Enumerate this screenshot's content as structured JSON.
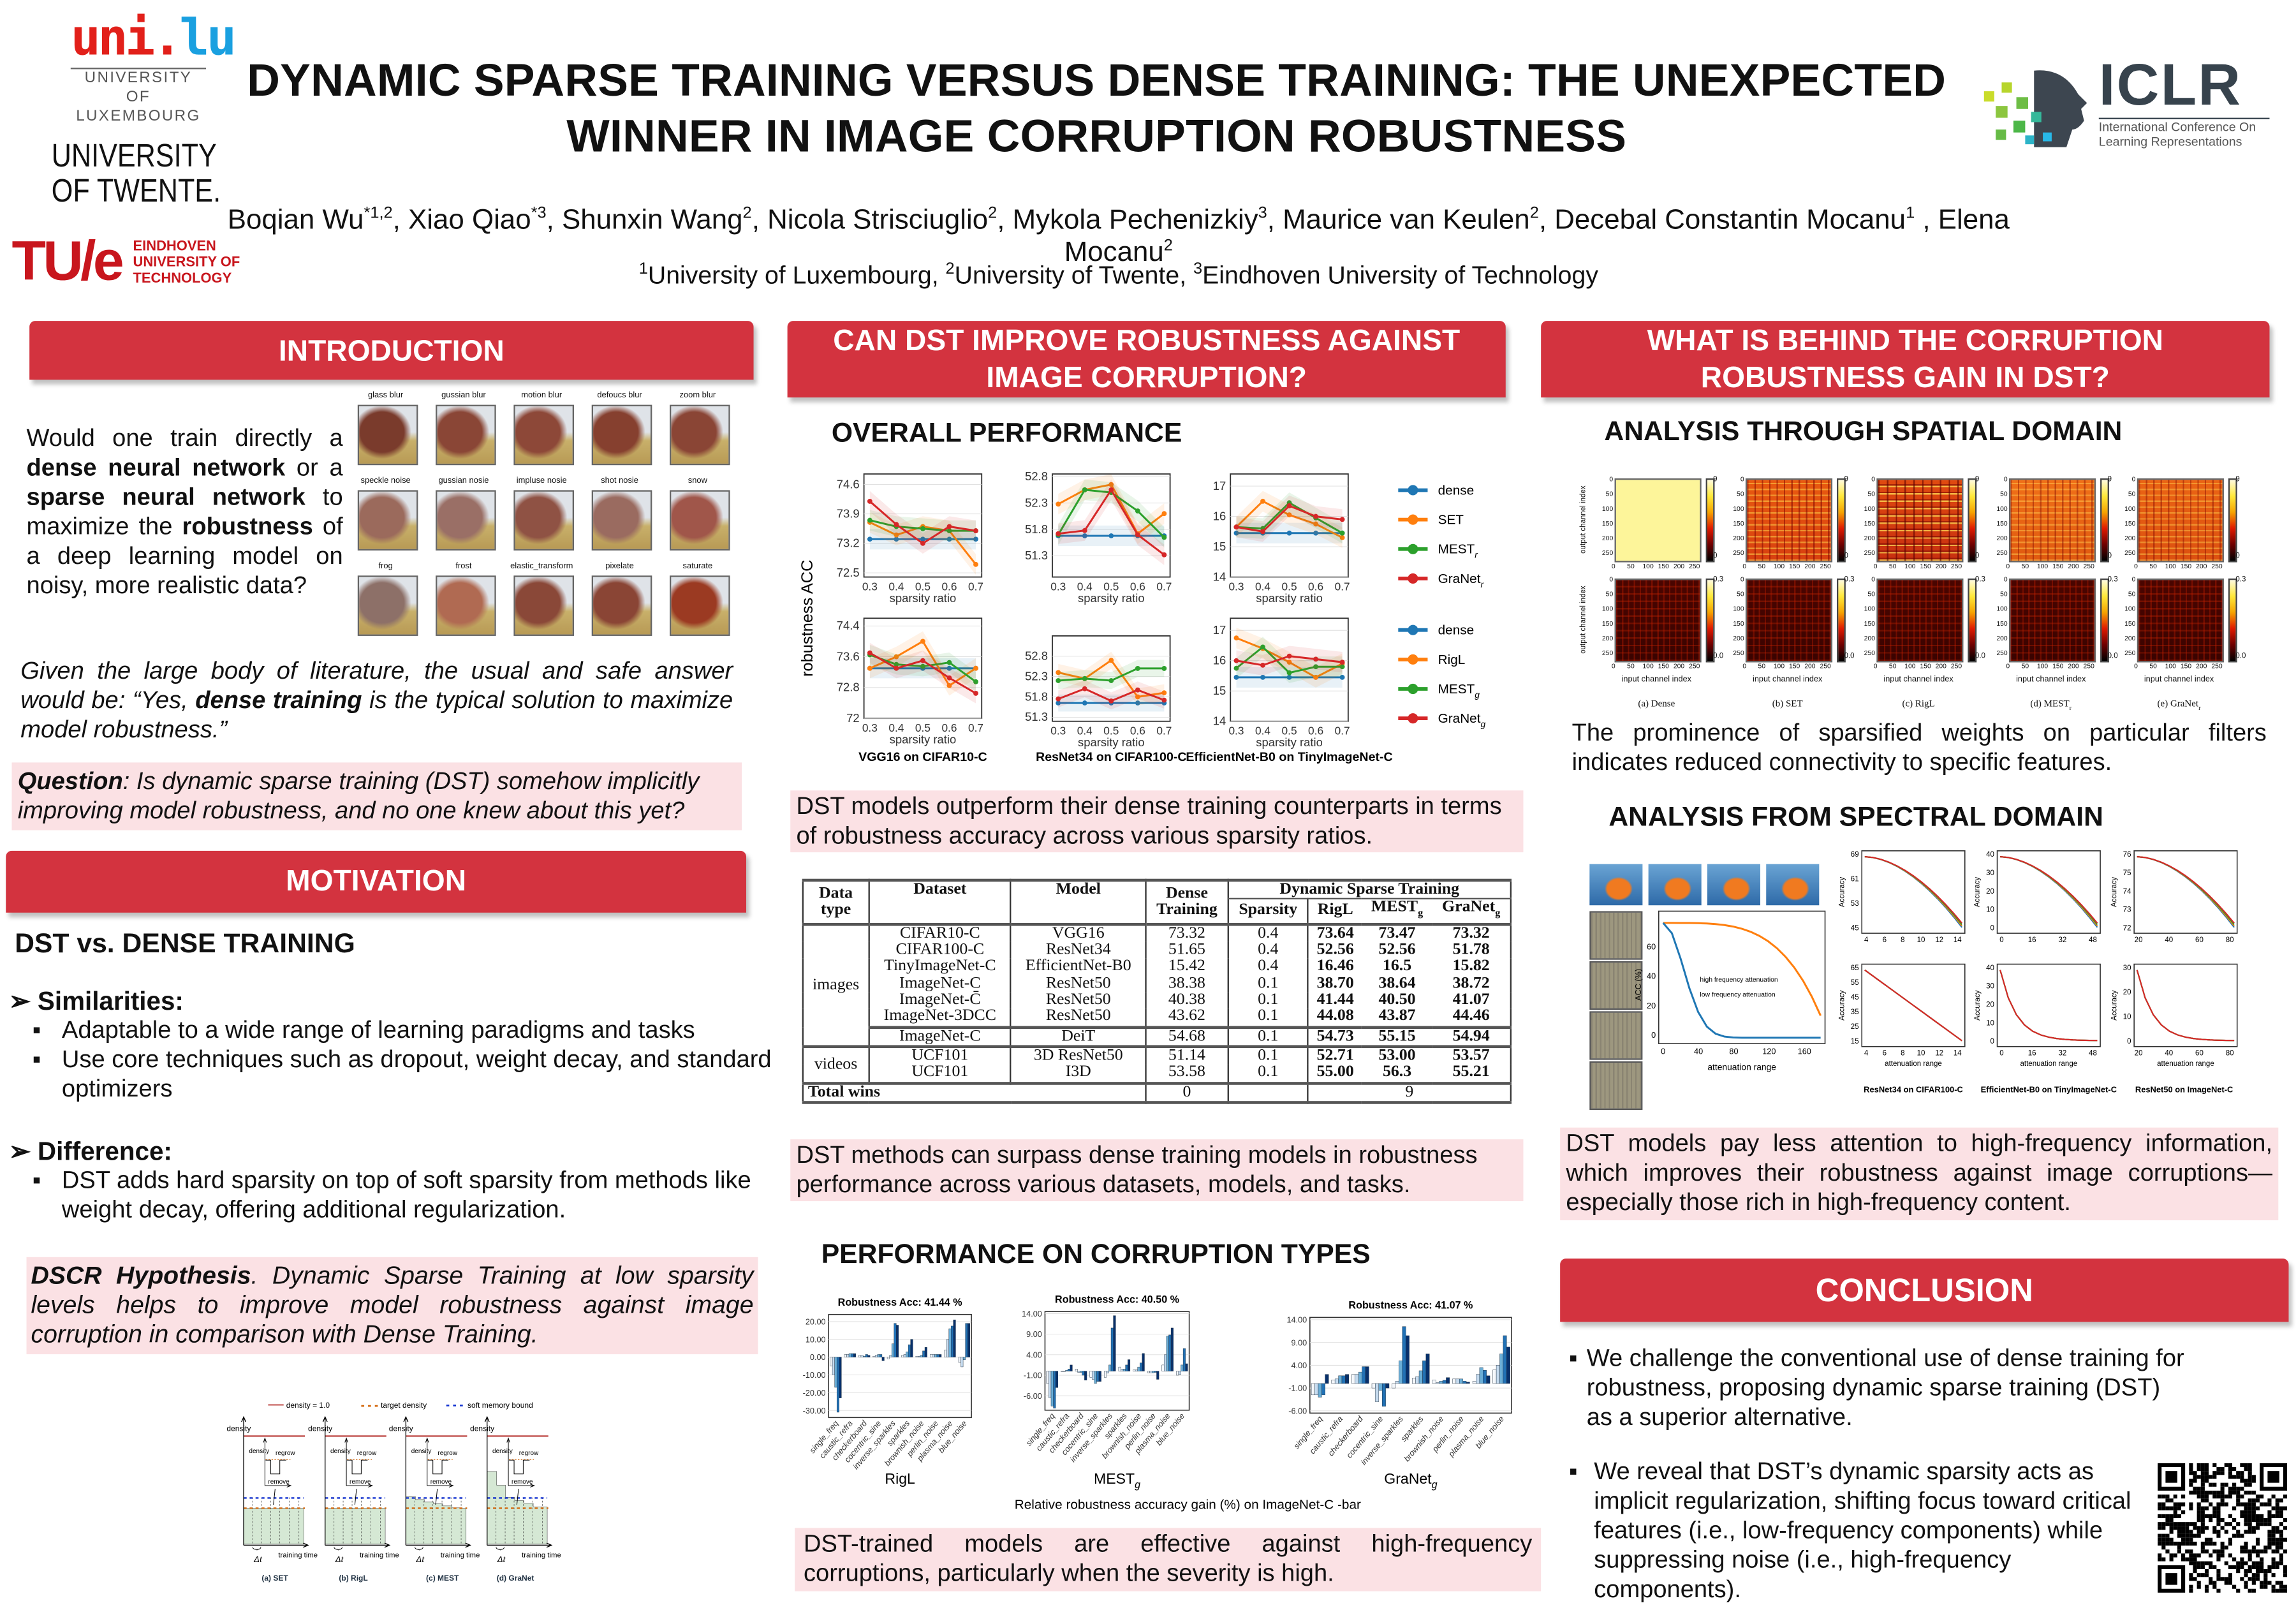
{
  "header": {
    "title_line1": "DYNAMIC SPARSE TRAINING VERSUS DENSE TRAINING: THE UNEXPECTED",
    "title_line2": "WINNER IN IMAGE CORRUPTION ROBUSTNESS",
    "authors": [
      {
        "name": "Boqian Wu",
        "sup": "*1,2"
      },
      {
        "name": "Xiao Qiao",
        "sup": "*3"
      },
      {
        "name": "Shunxin Wang",
        "sup": "2"
      },
      {
        "name": "Nicola Strisciuglio",
        "sup": "2"
      },
      {
        "name": "Mykola Pechenizkiy",
        "sup": "3"
      },
      {
        "name": "Maurice van Keulen",
        "sup": "2"
      },
      {
        "name": "Decebal Constantin Mocanu",
        "sup": "1"
      },
      {
        "name": "Elena Mocanu",
        "sup": "2"
      }
    ],
    "affiliations": [
      {
        "sup": "1",
        "name": "University of Luxembourg"
      },
      {
        "sup": "2",
        "name": "University of Twente"
      },
      {
        "sup": "3",
        "name": "Eindhoven University of Technology"
      }
    ],
    "logos": {
      "unilu_mark_a": "uni.",
      "unilu_mark_b": "lu",
      "unilu_line1": "UNIVERSITY OF",
      "unilu_line2": "LUXEMBOURG",
      "twente_line1": "UNIVERSITY",
      "twente_line2": "OF TWENTE.",
      "tue_mark": "TU/e",
      "tue_line1": "EINDHOVEN",
      "tue_line2": "UNIVERSITY OF",
      "tue_line3": "TECHNOLOGY",
      "iclr_mark": "ICLR",
      "iclr_line1": "International Conference On",
      "iclr_line2": "Learning Representations"
    }
  },
  "colors": {
    "accent": "#d3333f",
    "highlight": "#fbe1e4",
    "dense": "#1f77b4",
    "set": "#ff7f0e",
    "mest": "#2ca02c",
    "granet": "#d62728"
  },
  "intro": {
    "heading": "INTRODUCTION",
    "p1": [
      "Would one train directly a ",
      "dense neural network",
      " or a ",
      "sparse neural network",
      " to maximize the ",
      "robustness",
      " of a deep learning model on noisy, more realistic data?"
    ],
    "p2": [
      "Given the large body of literature, the usual and safe answer would be: “Yes, ",
      "dense training",
      " is the typical solution to maximize model robustness.”"
    ],
    "question": [
      "Question",
      ": Is dynamic sparse training (",
      "DST",
      ") somehow implicitly improving model robustness, and no one knew about this yet?"
    ],
    "corruptions": [
      "glass blur",
      "gussian blur",
      "motion blur",
      "defoucs blur",
      "zoom blur",
      "speckle noise",
      "gussian nosie",
      "impluse nosie",
      "shot nosie",
      "snow",
      "frog",
      "frost",
      "elastic_transform",
      "pixelate",
      "saturate"
    ]
  },
  "motivation": {
    "heading": "MOTIVATION",
    "subheading": "DST vs. DENSE TRAINING",
    "similarities_label": "Similarities:",
    "similarities": [
      "Adaptable to a wide range of learning paradigms and tasks",
      "Use core techniques such as dropout, weight decay, and standard optimizers"
    ],
    "difference_label": "Difference:",
    "differences": [
      "DST adds hard sparsity on top of soft sparsity from methods like weight decay, offering additional regularization."
    ],
    "hypothesis": [
      "DSCR Hypothesis",
      ". Dynamic Sparse Training at low sparsity levels helps to improve model robustness against image corruption in comparison with Dense Training."
    ],
    "diagram": {
      "legend": [
        "density = 1.0",
        "target density",
        "soft memory bound"
      ],
      "axis_y": "density",
      "axis_x": "training time",
      "delta": "Δt",
      "regrow": "regrow",
      "remove": "remove",
      "panels": [
        "(a) SET",
        "(b) RigL",
        "(c) MEST",
        "(d) GraNet"
      ]
    }
  },
  "middle": {
    "heading_line1": "CAN DST IMPROVE ROBUSTNESS AGAINST",
    "heading_line2": "IMAGE CORRUPTION?",
    "overall_heading": "OVERALL PERFORMANCE",
    "ylabel": "robustness ACC",
    "xlabel": "sparsity ratio",
    "captions": [
      "VGG16 on CIFAR10-C",
      "ResNet34 on CIFAR100-C",
      "EfficientNet-B0 on TinyImageNet-C"
    ],
    "legend_top": [
      "dense",
      "SET",
      "MEST",
      "GraNet"
    ],
    "legend_top_sub": [
      "",
      "",
      "r",
      "r"
    ],
    "legend_bottom": [
      "dense",
      "RigL",
      "MEST",
      "GraNet"
    ],
    "legend_bottom_sub": [
      "",
      "",
      "g",
      "g"
    ],
    "line_charts": [
      {
        "ylim": [
          72.4,
          74.85
        ],
        "yticks": [
          72.5,
          73.2,
          73.9,
          74.6
        ],
        "series": [
          [
            73.3,
            73.3,
            73.3,
            73.3,
            73.3
          ],
          [
            73.7,
            73.4,
            73.6,
            73.5,
            72.7
          ],
          [
            73.75,
            73.6,
            73.55,
            73.5,
            73.5
          ],
          [
            74.2,
            73.65,
            73.2,
            73.6,
            73.5
          ]
        ]
      },
      {
        "ylim": [
          50.9,
          52.85
        ],
        "yticks": [
          51.3,
          51.8,
          52.3,
          52.8
        ],
        "series": [
          [
            51.68,
            51.68,
            51.68,
            51.68,
            51.68
          ],
          [
            52.28,
            52.55,
            52.65,
            51.72,
            52.1
          ],
          [
            51.7,
            52.55,
            52.5,
            52.15,
            51.65
          ],
          [
            51.72,
            51.78,
            52.55,
            51.7,
            51.32
          ]
        ]
      },
      {
        "ylim": [
          14,
          17.4
        ],
        "yticks": [
          14,
          15,
          16,
          17
        ],
        "series": [
          [
            15.45,
            15.45,
            15.45,
            15.45,
            15.45
          ],
          [
            15.65,
            16.5,
            16.05,
            15.75,
            15.3
          ],
          [
            15.65,
            15.6,
            16.45,
            15.95,
            15.45
          ],
          [
            15.65,
            15.5,
            16.35,
            16.0,
            15.9
          ]
        ]
      },
      {
        "ylim": [
          72.0,
          74.6
        ],
        "yticks": [
          72.0,
          72.8,
          73.6,
          74.4
        ],
        "series": [
          [
            73.3,
            73.3,
            73.3,
            73.3,
            73.3
          ],
          [
            73.3,
            73.6,
            74.0,
            72.85,
            73.3
          ],
          [
            73.65,
            73.4,
            73.35,
            73.45,
            72.95
          ],
          [
            73.7,
            73.3,
            73.5,
            73.05,
            72.65
          ]
        ]
      },
      {
        "ylim": [
          51.2,
          53.3
        ],
        "yticks": [
          51.3,
          51.8,
          52.3,
          52.8
        ],
        "series": [
          [
            51.65,
            51.65,
            51.65,
            51.65,
            51.65
          ],
          [
            52.4,
            52.25,
            52.7,
            51.8,
            51.9
          ],
          [
            52.2,
            52.25,
            52.2,
            52.5,
            52.5
          ],
          [
            51.75,
            52.0,
            51.7,
            51.97,
            51.72
          ]
        ]
      },
      {
        "ylim": [
          14,
          17.4
        ],
        "yticks": [
          14,
          15,
          16,
          17
        ],
        "series": [
          [
            15.45,
            15.45,
            15.45,
            15.45,
            15.45
          ],
          [
            16.75,
            16.4,
            15.95,
            15.45,
            15.9
          ],
          [
            15.75,
            16.45,
            15.6,
            15.8,
            15.8
          ],
          [
            16.0,
            15.85,
            16.15,
            16.05,
            15.95
          ]
        ]
      }
    ],
    "x_values": [
      "0.3",
      "0.4",
      "0.5",
      "0.6",
      "0.7"
    ],
    "summary1": "DST models outperform their dense training counterparts in terms of robustness accuracy across various sparsity ratios.",
    "table": {
      "headers": {
        "data_type": [
          "Data",
          "type"
        ],
        "dataset": "Dataset",
        "model": "Model",
        "dense": [
          "Dense",
          "Training"
        ],
        "dst": "Dynamic Sparse Training",
        "sparsity": "Sparsity",
        "rigl": "RigL",
        "mest": "MEST",
        "granet": "GraNet",
        "sub": "g"
      },
      "group_images": "images",
      "group_videos": "videos",
      "rows": [
        [
          "CIFAR10-C",
          "VGG16",
          "73.32",
          "0.4",
          "73.64",
          "73.47",
          "73.32"
        ],
        [
          "CIFAR100-C",
          "ResNet34",
          "51.65",
          "0.4",
          "52.56",
          "52.56",
          "51.78"
        ],
        [
          "TinyImageNet-C",
          "EfficientNet-B0",
          "15.42",
          "0.4",
          "16.46",
          "16.5",
          "15.82"
        ],
        [
          "ImageNet-C",
          "ResNet50",
          "38.38",
          "0.1",
          "38.70",
          "38.64",
          "38.72"
        ],
        [
          "ImageNet-C̄",
          "ResNet50",
          "40.38",
          "0.1",
          "41.44",
          "40.50",
          "41.07"
        ],
        [
          "ImageNet-3DCC",
          "ResNet50",
          "43.62",
          "0.1",
          "44.08",
          "43.87",
          "44.46"
        ],
        [
          "ImageNet-C",
          "DeiT",
          "54.68",
          "0.1",
          "54.73",
          "55.15",
          "54.94"
        ],
        [
          "UCF101",
          "3D ResNet50",
          "51.14",
          "0.1",
          "52.71",
          "53.00",
          "53.57"
        ],
        [
          "UCF101",
          "I3D",
          "53.58",
          "0.1",
          "55.00",
          "56.3",
          "55.21"
        ]
      ],
      "total_label": "Total wins",
      "total_dense": "0",
      "total_dst": "9"
    },
    "summary2": "DST methods can surpass dense training models in robustness performance across various datasets, models, and tasks.",
    "corruption_heading": "PERFORMANCE ON CORRUPTION TYPES",
    "bar_categories": [
      "single_freq",
      "caustic_refra",
      "checkerboard",
      "cocentric_sine",
      "inverse_sparkles",
      "sparkles",
      "brownish_noise",
      "perlin_noise",
      "plasma_noise",
      "blue_noise"
    ],
    "bar_charts": [
      {
        "title": "Robustness Acc: 41.44 %",
        "method": "RigL",
        "sub": "",
        "ylim": [
          -34,
          24
        ],
        "yticks": [
          "-30.00",
          "-20.00",
          "-10.00",
          "0.00",
          "10.00",
          "20.00"
        ],
        "ytick_values": [
          -30,
          -20,
          -10,
          0,
          10,
          20
        ],
        "values": [
          [
            -5,
            -10,
            -17,
            -31,
            -23
          ],
          [
            1.5,
            1.5,
            2,
            2,
            2
          ],
          [
            1,
            1,
            0.5,
            1.5,
            1
          ],
          [
            0.5,
            1,
            1.5,
            1.5,
            -2
          ],
          [
            -1,
            1,
            7.5,
            19,
            18
          ],
          [
            1,
            1.5,
            3,
            7,
            10
          ],
          [
            0.5,
            0.5,
            1,
            3.5,
            5.5
          ],
          [
            1.5,
            1.5,
            1.5,
            1.5,
            1.5
          ],
          [
            4,
            10,
            16,
            17.5,
            21
          ],
          [
            -3,
            -5.5,
            -1.5,
            19,
            19
          ]
        ]
      },
      {
        "title": "Robustness Acc: 40.50 %",
        "method": "MEST",
        "sub": "g",
        "ylim": [
          -9.5,
          14.5
        ],
        "yticks": [
          "-6.00",
          "-1.00",
          "4.00",
          "9.00",
          "14.00"
        ],
        "ytick_values": [
          -6,
          -1,
          4,
          9,
          14
        ],
        "values": [
          [
            -3,
            -6.5,
            -8.5,
            -9,
            -4
          ],
          [
            0,
            0,
            0.2,
            0.5,
            1.5
          ],
          [
            0.5,
            -0.3,
            -0.3,
            -1,
            -2.2
          ],
          [
            -1.5,
            -2,
            -3,
            -2.5,
            -2.5
          ],
          [
            -1.5,
            -0.5,
            1.5,
            10.5,
            13.5
          ],
          [
            1,
            0.5,
            0.5,
            1.5,
            2.8
          ],
          [
            0.3,
            0.3,
            1,
            2,
            4.3
          ],
          [
            -0.4,
            -0.4,
            -0.4,
            -0.3,
            -2
          ],
          [
            1.5,
            4,
            8.5,
            8.8,
            10.5
          ],
          [
            -1,
            -0.8,
            1.5,
            5.5,
            1.8
          ]
        ]
      },
      {
        "title": "Robustness Acc: 41.07 %",
        "method": "GraNet",
        "sub": "g",
        "ylim": [
          -6.5,
          14.5
        ],
        "yticks": [
          "-6.00",
          "-1.00",
          "4.00",
          "9.00",
          "14.00"
        ],
        "ytick_values": [
          -6,
          -1,
          4,
          9,
          14
        ],
        "values": [
          [
            -2.5,
            -2.5,
            -3,
            -2.5,
            2
          ],
          [
            0.8,
            1,
            1.7,
            1.7,
            2
          ],
          [
            2,
            2,
            2.5,
            3.7,
            3.7
          ],
          [
            -1,
            -4,
            -1.5,
            -5,
            -1
          ],
          [
            -1,
            0.5,
            5,
            12.5,
            10.5
          ],
          [
            1.2,
            1.5,
            2.8,
            5,
            6.5
          ],
          [
            0.8,
            0.2,
            0.5,
            0.7,
            1.3
          ],
          [
            1,
            1,
            1,
            0.5,
            0.3
          ],
          [
            0.5,
            2,
            3.5,
            2.9,
            1.7
          ],
          [
            3,
            4,
            6.5,
            10.5,
            8
          ]
        ]
      }
    ],
    "bar_caption": "Relative robustness accuracy gain (%) on ImageNet-C -bar",
    "summary3": "DST-trained models are effective against high-frequency corruptions, particularly when the severity is high."
  },
  "right": {
    "heading_line1": "WHAT IS BEHIND THE CORRUPTION",
    "heading_line2": "ROBUSTNESS GAIN IN DST?",
    "spatial_heading": "ANALYSIS THROUGH SPATIAL DOMAIN",
    "heatmap_ylabel": "output channel index",
    "heatmap_xlabel": "input channel index",
    "heatmap_ticks": [
      "0",
      "50",
      "100",
      "150",
      "200",
      "250"
    ],
    "cbar_top": [
      "9",
      "0"
    ],
    "cbar_bottom": [
      "0.3",
      "0.0"
    ],
    "heatmap_captions": [
      "(a) Dense",
      "(b) SET",
      "(c) RigL",
      "(d) MEST",
      "(e) GraNet"
    ],
    "heatmap_caption_subs": [
      "",
      "",
      "",
      "r",
      "r"
    ],
    "spatial_summary": "The prominence of sparsified weights on particular filters indicates reduced connectivity to specific features.",
    "spectral_heading": "ANALYSIS FROM SPECTRAL DOMAIN",
    "attenuation_label": "attenuation range",
    "acc_label": "ACC (%)",
    "accuracy_label": "Accuracy",
    "hf_label": "high frequency attenuation",
    "lf_label": "low frequency attenuation",
    "main_xticks": [
      "0",
      "40",
      "80",
      "120",
      "160"
    ],
    "main_yticks": [
      "0",
      "20",
      "40",
      "60"
    ],
    "spectral_plots": [
      {
        "yticks": [
          "45",
          "53",
          "61",
          "69"
        ],
        "xticks": [
          "4",
          "6",
          "8",
          "10",
          "12",
          "14"
        ]
      },
      {
        "yticks": [
          "0",
          "10",
          "20",
          "30",
          "40"
        ],
        "xticks": [
          "0",
          "16",
          "32",
          "48"
        ]
      },
      {
        "yticks": [
          "72",
          "73",
          "74",
          "75",
          "76"
        ],
        "xticks": [
          "20",
          "40",
          "60",
          "80"
        ]
      },
      {
        "yticks": [
          "15",
          "25",
          "35",
          "45",
          "55",
          "65"
        ],
        "xticks": [
          "4",
          "6",
          "8",
          "10",
          "12",
          "14"
        ]
      },
      {
        "yticks": [
          "0",
          "10",
          "20",
          "30",
          "40"
        ],
        "xticks": [
          "0",
          "16",
          "32",
          "48"
        ]
      },
      {
        "yticks": [
          "0",
          "10",
          "20",
          "30"
        ],
        "xticks": [
          "20",
          "40",
          "60",
          "80"
        ]
      }
    ],
    "spectral_captions": [
      "ResNet34 on CIFAR100-C",
      "EfficientNet-B0 on TinyImageNet-C",
      "ResNet50 on ImageNet-C"
    ],
    "spectral_summary": "DST models pay less attention to high-frequency information, which improves their robustness against image corruptions—especially those rich in high-frequency content."
  },
  "conclusion": {
    "heading": "CONCLUSION",
    "bullets": [
      "We challenge the conventional use of dense training for robustness, proposing dynamic sparse training (DST) as a superior alternative.",
      "We reveal that DST’s dynamic sparsity acts as implicit regularization, shifting focus toward critical features (i.e., low-frequency components) while suppressing noise (i.e., high-frequency components)."
    ]
  }
}
